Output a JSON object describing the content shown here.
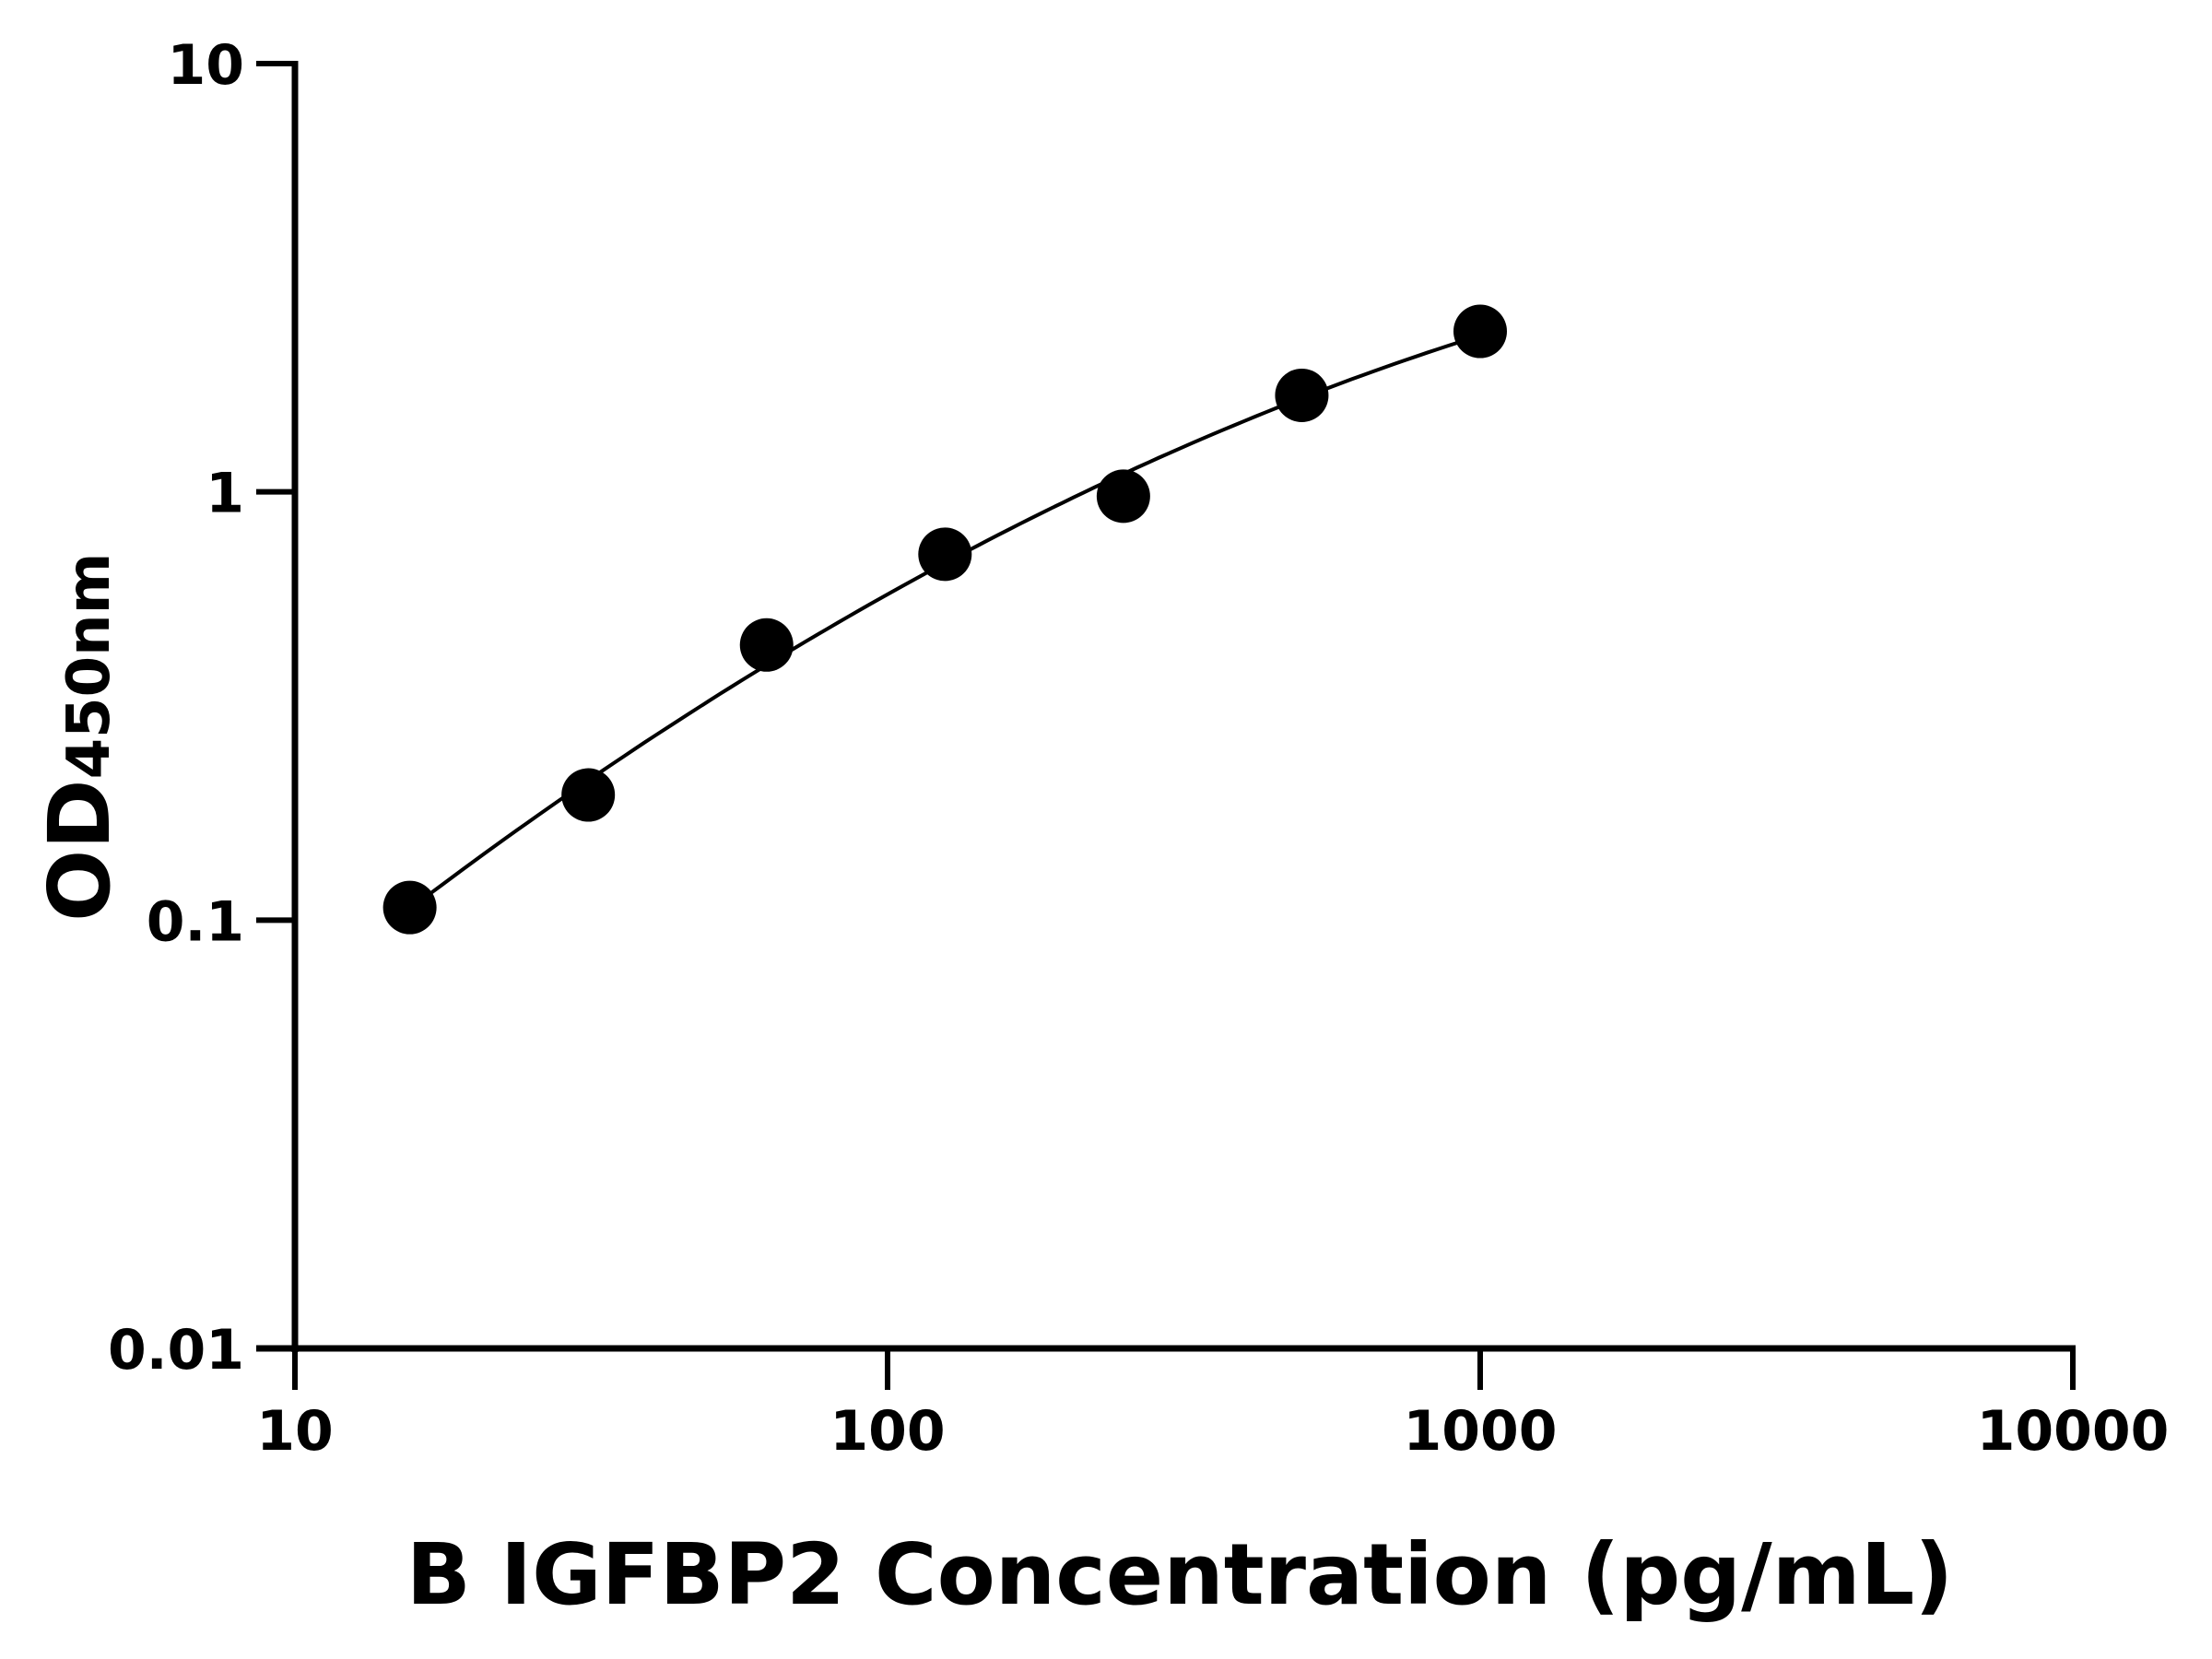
{
  "chart_data": {
    "type": "scatter",
    "title": "",
    "xlabel": "B IGFBP2 Concentration (pg/mL)",
    "ylabel": "OD",
    "ylabel_subscript": "450nm",
    "x_scale": "log",
    "y_scale": "log",
    "xlim": [
      10,
      10000
    ],
    "ylim": [
      0.01,
      10
    ],
    "x_ticks": [
      "10",
      "100",
      "1000",
      "10000"
    ],
    "y_ticks": [
      "0.01",
      "0.1",
      "1",
      "10"
    ],
    "grid": false,
    "legend": "none",
    "fit_curve": true,
    "colors": {
      "points": "#000000",
      "curve": "#000000",
      "axes": "#000000"
    },
    "series": [
      {
        "x": [
          15.625,
          31.25,
          62.5,
          125,
          250,
          500,
          1000
        ],
        "y": [
          0.107,
          0.196,
          0.439,
          0.715,
          0.977,
          1.68,
          2.37
        ]
      }
    ]
  }
}
